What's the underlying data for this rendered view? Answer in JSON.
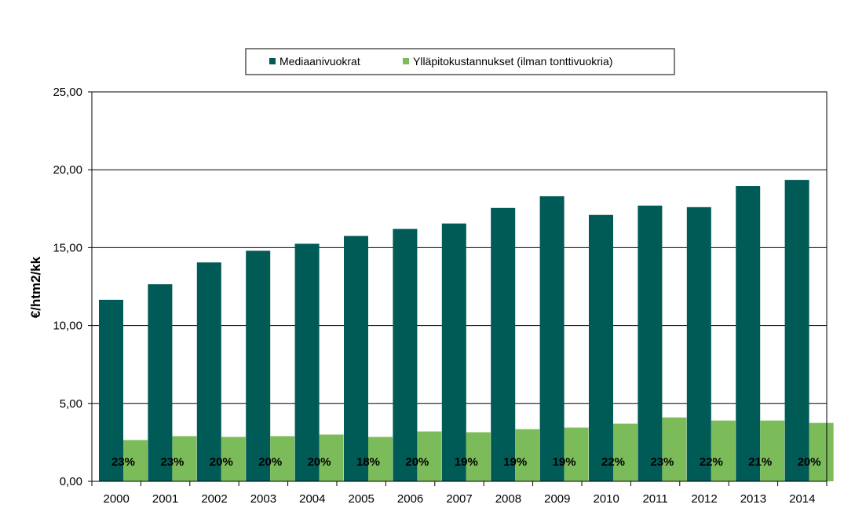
{
  "chart_data": {
    "type": "bar",
    "categories": [
      "2000",
      "2001",
      "2002",
      "2003",
      "2004",
      "2005",
      "2006",
      "2007",
      "2008",
      "2009",
      "2010",
      "2011",
      "2012",
      "2013",
      "2014"
    ],
    "series": [
      {
        "name": "Mediaanivuokrat",
        "color": "#005A55",
        "values": [
          11.65,
          12.65,
          14.05,
          14.8,
          15.25,
          15.75,
          16.2,
          16.55,
          17.55,
          18.3,
          17.1,
          17.7,
          17.6,
          18.95,
          19.35
        ]
      },
      {
        "name": "Ylläpitokustannukset (ilman tonttivuokria)",
        "color": "#7CBB5A",
        "values": [
          2.65,
          2.9,
          2.85,
          2.9,
          3.0,
          2.85,
          3.2,
          3.15,
          3.35,
          3.45,
          3.7,
          4.1,
          3.9,
          3.9,
          3.75
        ]
      }
    ],
    "data_labels": [
      "23%",
      "23%",
      "20%",
      "20%",
      "20%",
      "18%",
      "20%",
      "19%",
      "19%",
      "19%",
      "22%",
      "23%",
      "22%",
      "21%",
      "20%"
    ],
    "ylabel": "€/htm2/kk",
    "xlabel": "",
    "ylim": [
      0,
      25
    ],
    "yticks": [
      "0,00",
      "5,00",
      "10,00",
      "15,00",
      "20,00",
      "25,00"
    ],
    "grid": true,
    "legend": "top-center"
  }
}
